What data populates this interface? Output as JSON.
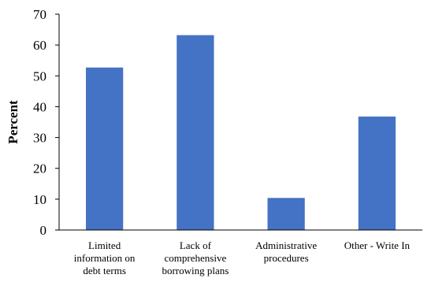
{
  "chart_data": {
    "type": "bar",
    "categories": [
      [
        "Limited",
        "information on",
        "debt terms"
      ],
      [
        "Lack of",
        "comprehensive",
        "borrowing plans"
      ],
      [
        "Administrative",
        "procedures"
      ],
      [
        "Other - Write In"
      ]
    ],
    "values": [
      52.7,
      63.2,
      10.4,
      36.8
    ],
    "ylabel": "Percent",
    "xlabel": "",
    "ylim": [
      0,
      70
    ],
    "yticks": [
      0,
      10,
      20,
      30,
      40,
      50,
      60,
      70
    ],
    "grid": false,
    "legend": "none",
    "bar_color": "#4472C4"
  }
}
